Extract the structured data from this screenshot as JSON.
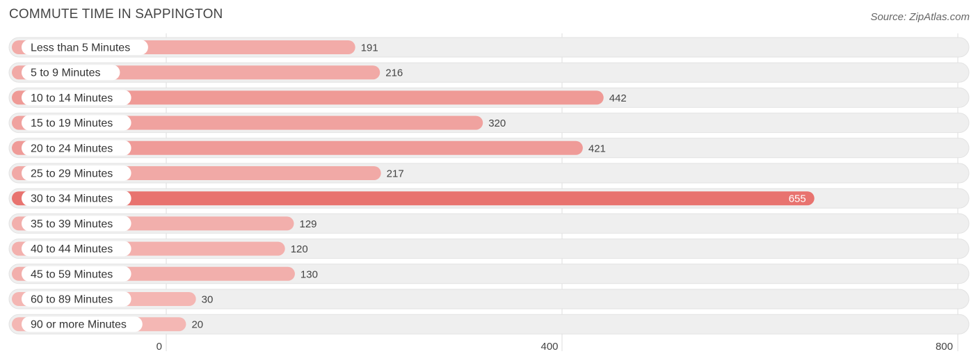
{
  "header": {
    "title": "COMMUTE TIME IN SAPPINGTON",
    "source": "Source: ZipAtlas.com"
  },
  "chart_data": {
    "type": "bar",
    "orientation": "horizontal",
    "title": "COMMUTE TIME IN SAPPINGTON",
    "categories": [
      "Less than 5 Minutes",
      "5 to 9 Minutes",
      "10 to 14 Minutes",
      "15 to 19 Minutes",
      "20 to 24 Minutes",
      "25 to 29 Minutes",
      "30 to 34 Minutes",
      "35 to 39 Minutes",
      "40 to 44 Minutes",
      "45 to 59 Minutes",
      "60 to 89 Minutes",
      "90 or more Minutes"
    ],
    "values": [
      191,
      216,
      442,
      320,
      421,
      217,
      655,
      129,
      120,
      130,
      30,
      20
    ],
    "xlim": [
      0,
      800
    ],
    "xticks": [
      0,
      400,
      800
    ],
    "grid": true,
    "colors": {
      "bar_max": "#e8736f",
      "bar_light": "#f4b8b5",
      "track": "#efefef",
      "track_border": "#e2e2e2",
      "grid": "#dddddd"
    }
  }
}
